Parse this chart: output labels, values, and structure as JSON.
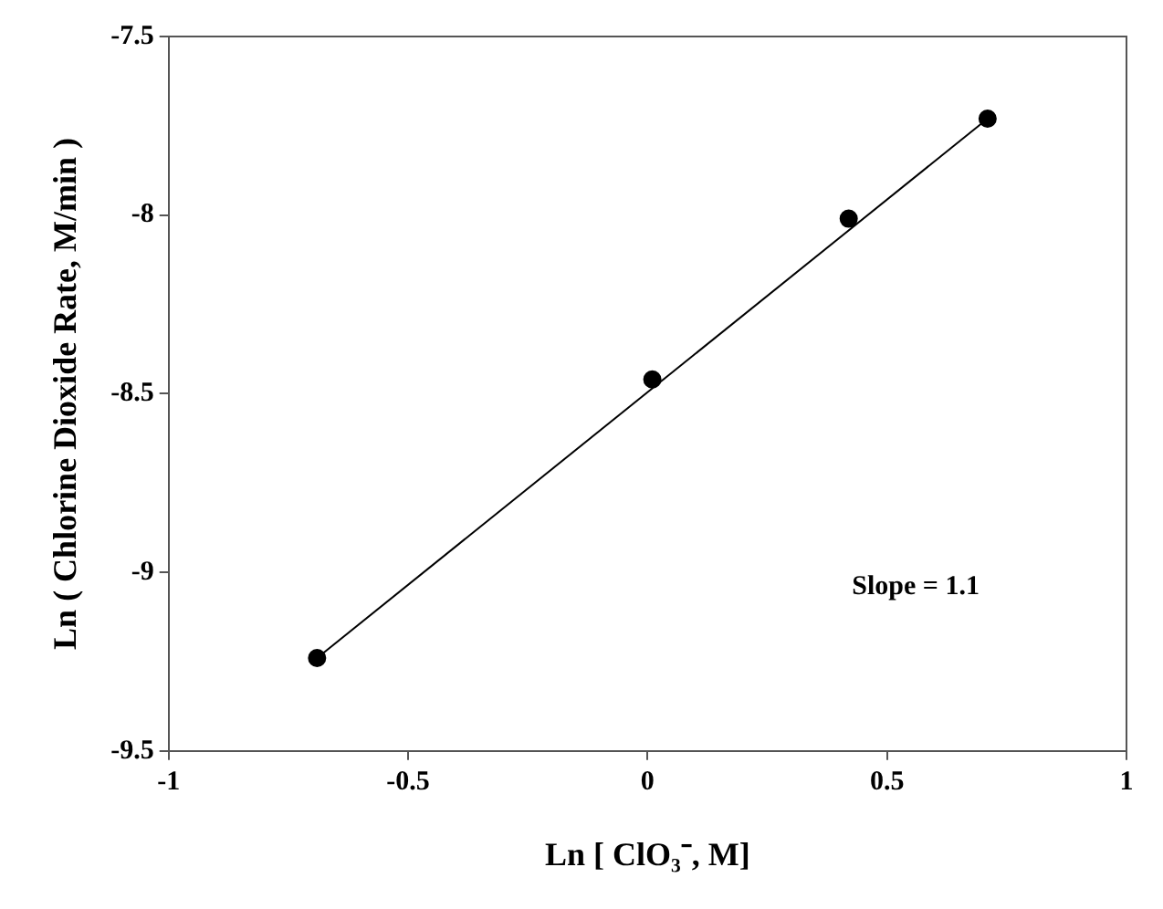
{
  "chart_data": {
    "type": "scatter",
    "xlabel": "Ln [ ClO₃⁻, M]",
    "ylabel": "Ln ( Chlorine Dioxide Rate, M/min )",
    "annotations": [
      "Slope = 1.1"
    ],
    "series": [
      {
        "type": "scatter",
        "color": "#000000",
        "x": [
          -0.69,
          0.01,
          0.42,
          0.71
        ],
        "values": [
          -9.24,
          -8.46,
          -8.01,
          -7.73
        ],
        "marker": "circle"
      },
      {
        "type": "line",
        "color": "#000000",
        "x": [
          -0.69,
          0.71
        ],
        "values": [
          -9.24,
          -7.73
        ],
        "marker": "none",
        "line_style": "solid"
      }
    ],
    "xlim": [
      -1,
      1
    ],
    "xticks": [
      -1,
      -0.5,
      0,
      0.5,
      1
    ],
    "ylim": [
      -9.5,
      -7.5
    ],
    "yticks": [
      -9.5,
      -9,
      -8.5,
      -8,
      -7.5
    ],
    "grid": false,
    "legend": false
  }
}
